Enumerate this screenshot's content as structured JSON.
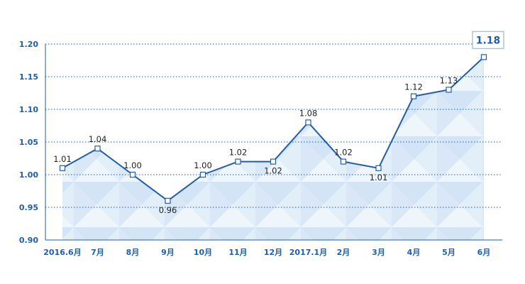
{
  "chart_data": {
    "type": "line",
    "categories": [
      "2016.6月",
      "7月",
      "8月",
      "9月",
      "10月",
      "11月",
      "12月",
      "2017.1月",
      "2月",
      "3月",
      "4月",
      "5月",
      "6月"
    ],
    "values": [
      1.01,
      1.04,
      1.0,
      0.96,
      1.0,
      1.02,
      1.02,
      1.08,
      1.02,
      1.01,
      1.12,
      1.13,
      1.18
    ],
    "data_labels": [
      "1.01",
      "1.04",
      "1.00",
      "0.96",
      "1.00",
      "1.02",
      "1.02",
      "1.08",
      "1.02",
      "1.01",
      "1.12",
      "1.13",
      "1.18"
    ],
    "ylim": [
      0.9,
      1.2
    ],
    "yticks": [
      "0.90",
      "0.95",
      "1.00",
      "1.05",
      "1.10",
      "1.15",
      "1.20"
    ],
    "title": "",
    "xlabel": "",
    "ylabel": "",
    "grid": "horizontal dotted",
    "colors": {
      "line": "#1f5ea8",
      "marker_fill": "#ffffff",
      "axis": "#1f5ea8",
      "grid": "#1f5ea8",
      "area_light": "#e3f0fb",
      "area_dark": "#c9dcf2",
      "label_box_border": "#b5c2d0"
    }
  }
}
